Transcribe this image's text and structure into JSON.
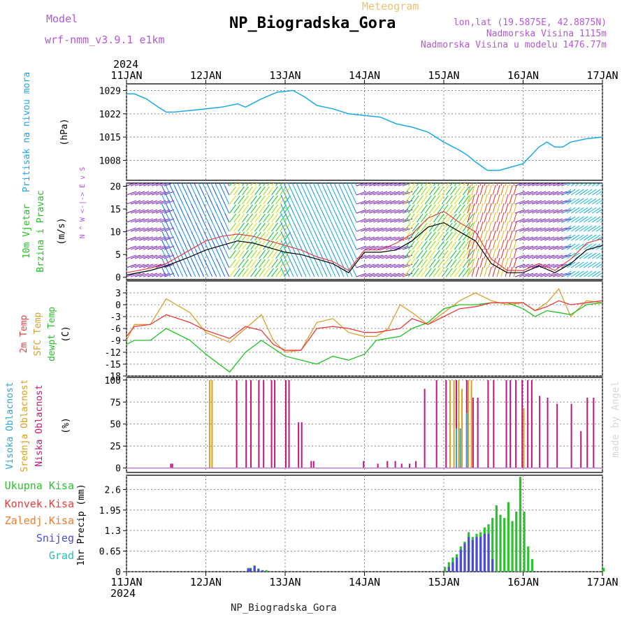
{
  "header": {
    "model_label": "Model",
    "model_name": "wrf-nmm_v3.9.1 e1km",
    "title": "NP_Biogradska_Gora",
    "product": "Meteogram",
    "lonlat": "lon,lat (19.5875E, 42.8875N)",
    "altitude": "Nadmorska Visina 1115m",
    "model_altitude": "Nadmorska Visina u modelu 1476.77m",
    "footer_station": "NP_Biogradska_Gora",
    "watermark": "made by Angel"
  },
  "colors": {
    "pressure": "#1aa9e6",
    "title": "#000000",
    "model": "#b05ad6",
    "meteogram": "#f0c070",
    "t2m": "#e83c3c",
    "tsfc": "#d8a030",
    "dewpt": "#22c022",
    "cloud_high": "#29a7d8",
    "cloud_mid": "#d8a020",
    "cloud_low": "#c0157a",
    "rain_total": "#2ec02e",
    "rain_conv": "#e83c3c",
    "freezing": "#f07a2a",
    "snow": "#4a4ae0",
    "hail": "#26c0b0"
  },
  "chart_data": [
    {
      "type": "line",
      "id": "pressure",
      "ylabel": [
        "Pritisak na nivou mora",
        "(hPa)"
      ],
      "x_ticks": [
        "11JAN",
        "12JAN",
        "13JAN",
        "14JAN",
        "15JAN",
        "16JAN",
        "17JAN"
      ],
      "x_top_year": "2024",
      "y_ticks": [
        1008,
        1015,
        1022,
        1029
      ],
      "ylim": [
        1002,
        1031
      ],
      "x": [
        0,
        0.1,
        0.25,
        0.4,
        0.5,
        0.6,
        0.8,
        1.0,
        1.2,
        1.4,
        1.5,
        1.7,
        1.9,
        2.1,
        2.25,
        2.4,
        2.6,
        2.8,
        3.0,
        3.2,
        3.4,
        3.6,
        3.8,
        4.0,
        4.2,
        4.3,
        4.4,
        4.55,
        4.7,
        4.85,
        5.0,
        5.1,
        5.2,
        5.3,
        5.4,
        5.5,
        5.6,
        5.8,
        6.0
      ],
      "series": [
        {
          "values": [
            1028,
            1028,
            1026.5,
            1024,
            1022.5,
            1022.5,
            1023,
            1023.5,
            1024,
            1025,
            1024,
            1026.5,
            1028.5,
            1029,
            1027,
            1024.5,
            1023.5,
            1022,
            1021.5,
            1021,
            1019,
            1018,
            1016.5,
            1013.5,
            1011,
            1009.5,
            1007.5,
            1005,
            1005,
            1006,
            1007,
            1009.5,
            1012,
            1013.5,
            1012,
            1012,
            1013.5,
            1014.5,
            1015
          ]
        }
      ]
    },
    {
      "type": "line",
      "id": "wind",
      "ylabel": [
        "10m Vjetar",
        "Brzina i Pravac",
        "(m/s)"
      ],
      "direction_legend": [
        "N",
        "^",
        "W <-|-> E",
        "v",
        "S"
      ],
      "y_ticks": [
        0,
        5,
        10,
        15,
        20
      ],
      "ylim": [
        -0.5,
        20.7
      ],
      "x": [
        0,
        0.3,
        0.5,
        0.8,
        1.0,
        1.2,
        1.4,
        1.6,
        1.8,
        2.0,
        2.2,
        2.4,
        2.6,
        2.8,
        3.0,
        3.2,
        3.4,
        3.6,
        3.8,
        4.0,
        4.2,
        4.4,
        4.6,
        4.8,
        5.0,
        5.2,
        5.4,
        5.6,
        5.8,
        6.0
      ],
      "series": [
        {
          "name": "speed",
          "values": [
            0.5,
            1.5,
            2.5,
            4.5,
            6,
            7,
            8,
            7.5,
            6.5,
            5.5,
            5,
            4,
            3,
            1,
            5.5,
            5.5,
            6,
            8,
            11,
            12,
            10,
            8,
            3,
            1,
            1,
            2.5,
            1,
            3,
            6,
            7
          ]
        },
        {
          "name": "gust",
          "values": [
            1,
            2,
            3,
            6,
            8,
            9,
            9.5,
            9,
            8,
            7,
            6,
            4.5,
            3.5,
            1.5,
            6,
            6,
            7.5,
            9.5,
            13,
            14.5,
            12,
            10,
            4,
            1.5,
            1.5,
            3,
            1.5,
            4,
            7.5,
            8.5
          ]
        }
      ],
      "barb_direction_regimes": [
        {
          "from": 0.0,
          "to": 0.5,
          "color_band": "violet"
        },
        {
          "from": 0.5,
          "to": 1.3,
          "color_band": "blue"
        },
        {
          "from": 1.3,
          "to": 2.0,
          "color_band": "green-yellow"
        },
        {
          "from": 2.0,
          "to": 2.9,
          "color_band": "cyan-blue"
        },
        {
          "from": 2.9,
          "to": 3.5,
          "color_band": "violet"
        },
        {
          "from": 3.5,
          "to": 4.3,
          "color_band": "green-yellow"
        },
        {
          "from": 4.3,
          "to": 4.9,
          "color_band": "red-orange"
        },
        {
          "from": 4.9,
          "to": 5.5,
          "color_band": "violet"
        },
        {
          "from": 5.5,
          "to": 6.0,
          "color_band": "cyan"
        }
      ]
    },
    {
      "type": "line",
      "id": "temperature",
      "ylabel": [
        "2m Temp",
        "SFC Temp",
        "dewpt Temp",
        "(C)"
      ],
      "y_ticks": [
        -18,
        -15,
        -12,
        -9,
        -6,
        -3,
        0,
        3
      ],
      "ylim": [
        -18,
        6
      ],
      "x": [
        0,
        0.1,
        0.3,
        0.5,
        0.8,
        1.0,
        1.3,
        1.5,
        1.7,
        1.85,
        2.0,
        2.2,
        2.4,
        2.6,
        2.8,
        3.0,
        3.15,
        3.3,
        3.45,
        3.6,
        3.8,
        4.0,
        4.2,
        4.4,
        4.6,
        4.8,
        5.0,
        5.15,
        5.3,
        5.45,
        5.6,
        5.8,
        6.0
      ],
      "series": [
        {
          "name": "2m Temp",
          "values": [
            -8,
            -5.5,
            -5,
            -2.5,
            -4.5,
            -6.5,
            -8.5,
            -5.5,
            -6.5,
            -10,
            -11.5,
            -11.5,
            -6,
            -5.5,
            -6,
            -7,
            -7,
            -6.5,
            -6,
            -3.5,
            -5,
            -3,
            -1,
            -0.5,
            0.5,
            0.5,
            0.5,
            -1.5,
            -0.5,
            1,
            0,
            0.5,
            1
          ]
        },
        {
          "name": "SFC Temp",
          "values": [
            -9,
            -5,
            -5,
            1.5,
            -2,
            -7,
            -9.5,
            -6,
            -2.5,
            -9,
            -12,
            -11.5,
            -4.5,
            -3.5,
            -7,
            -8,
            -8,
            -6,
            0,
            -2,
            -5,
            -2,
            1,
            3,
            1,
            0,
            0.5,
            -1.5,
            0.5,
            4,
            -3,
            1,
            0.5
          ]
        },
        {
          "name": "dewpt Temp",
          "values": [
            -10,
            -9,
            -9,
            -6,
            -9,
            -12.5,
            -17,
            -12,
            -9,
            -11,
            -13,
            -14,
            -15,
            -13,
            -14,
            -12.5,
            -9,
            -8.5,
            -8,
            -6,
            -4.5,
            -1,
            0,
            0,
            0.5,
            0.5,
            -1,
            -3,
            -1.5,
            -2,
            -2.5,
            0,
            0.5
          ]
        }
      ]
    },
    {
      "type": "bar",
      "id": "cloud",
      "ylabel": [
        "Visoka Oblacnost",
        "Srednja Oblacnost",
        "Niska Oblacnost",
        "(%)"
      ],
      "y_ticks": [
        0,
        25,
        50,
        75,
        100
      ],
      "ylim": [
        -5,
        103
      ],
      "series": [
        {
          "name": "Niska Oblacnost",
          "x": [
            0.55,
            0.57,
            1.38,
            1.5,
            1.56,
            1.66,
            1.72,
            1.82,
            1.86,
            2.0,
            2.04,
            2.16,
            2.2,
            2.32,
            2.35,
            2.98,
            3.16,
            3.28,
            3.38,
            3.46,
            3.56,
            3.64,
            3.75,
            3.9,
            4.02,
            4.15,
            4.28,
            4.36,
            4.42,
            4.55,
            4.62,
            4.78,
            4.83,
            4.9,
            4.98,
            5.05,
            5.1,
            5.2,
            5.3,
            5.42,
            5.6,
            5.72,
            5.8,
            5.88
          ],
          "values": [
            5,
            5,
            100,
            100,
            100,
            100,
            100,
            100,
            100,
            100,
            100,
            52,
            52,
            8,
            8,
            8,
            5,
            8,
            8,
            5,
            5,
            8,
            90,
            100,
            100,
            100,
            100,
            80,
            80,
            100,
            100,
            100,
            100,
            100,
            100,
            100,
            100,
            82,
            80,
            73,
            73,
            42,
            80,
            80
          ]
        },
        {
          "name": "Srednja Oblacnost",
          "x": [
            1.04,
            1.07,
            4.07,
            4.12,
            4.18,
            4.22,
            4.3,
            4.34,
            5.0
          ],
          "values": [
            100,
            100,
            100,
            100,
            100,
            90,
            100,
            100,
            68
          ]
        },
        {
          "name": "Visoka Oblacnost",
          "x": [
            4.15,
            4.2,
            4.28
          ],
          "values": [
            45,
            45,
            63
          ]
        }
      ]
    },
    {
      "type": "bar",
      "id": "precip",
      "ylabel": [
        "Ukupna Kisa",
        "Konvek.Kisa",
        "Zaledj.Kisa",
        "Snijeg",
        "Grad",
        "1hr Precip (mm)"
      ],
      "y_ticks": [
        0,
        0.65,
        1.3,
        1.95,
        2.6
      ],
      "ylim": [
        0,
        3.05
      ],
      "x_ticks": [
        "11JAN",
        "12JAN",
        "13JAN",
        "14JAN",
        "15JAN",
        "16JAN",
        "17JAN"
      ],
      "x_bottom_year": "2024",
      "series": [
        {
          "name": "Ukupna Kisa",
          "x": [
            1.52,
            1.55,
            1.6,
            1.65,
            1.7,
            1.75,
            4.0,
            4.05,
            4.1,
            4.15,
            4.2,
            4.25,
            4.3,
            4.35,
            4.4,
            4.45,
            4.5,
            4.55,
            4.6,
            4.65,
            4.7,
            4.75,
            4.8,
            4.85,
            4.9,
            4.95,
            5.0,
            5.05,
            5.1,
            5.15,
            5.2,
            5.25,
            5.3,
            5.35,
            5.4,
            5.45,
            5.5,
            5.55,
            5.6,
            5.65,
            5.7,
            5.75,
            5.8,
            5.85,
            5.9,
            5.95,
            6.0
          ],
          "values": [
            0.12,
            0.12,
            0.2,
            0.1,
            0.05,
            0.05,
            0.15,
            0.3,
            0.45,
            0.55,
            0.8,
            0.95,
            1.25,
            1.1,
            1.2,
            1.25,
            1.4,
            1.5,
            1.7,
            2.1,
            1.8,
            1.7,
            2.2,
            1.6,
            1.9,
            3.0,
            1.9,
            0.8,
            0.4,
            0.0,
            0.0,
            0.0,
            0.0,
            0.0,
            0.0,
            0.0,
            0.0,
            0.0,
            0.0,
            0.0,
            0.0,
            0.0,
            0.0,
            0.0,
            0.0,
            0.0,
            0.12
          ]
        },
        {
          "name": "Snijeg",
          "x": [
            1.52,
            1.55,
            1.6,
            1.65,
            1.7,
            4.05,
            4.1,
            4.15,
            4.2,
            4.25,
            4.3,
            4.35,
            4.4,
            4.45,
            4.5,
            4.55,
            4.6
          ],
          "values": [
            0.1,
            0.1,
            0.18,
            0.08,
            0.04,
            0.15,
            0.3,
            0.45,
            0.7,
            0.9,
            1.1,
            1.0,
            1.1,
            1.1,
            1.2,
            1.2,
            0.4
          ]
        }
      ]
    }
  ]
}
